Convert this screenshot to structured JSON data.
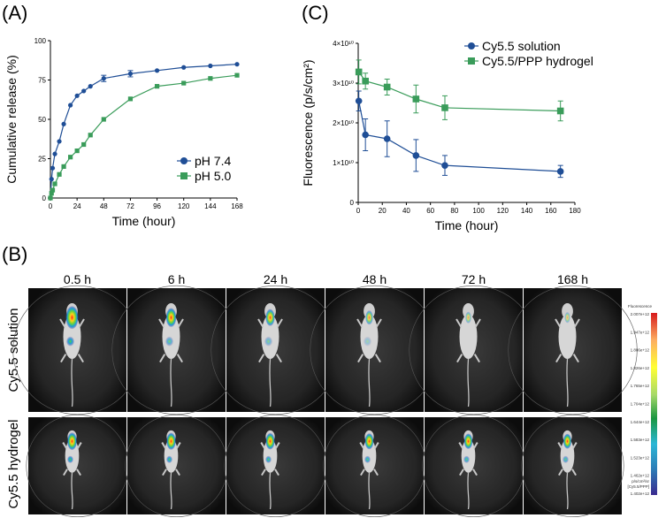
{
  "panels": {
    "a": "(A)",
    "b": "(B)",
    "c": "(C)"
  },
  "chart_data": [
    {
      "type": "line",
      "id": "A",
      "title": "",
      "xlabel": "Time (hour)",
      "ylabel": "Cumulative release (%)",
      "xlim": [
        0,
        168
      ],
      "ylim": [
        0,
        100
      ],
      "xticks": [
        0,
        24,
        48,
        72,
        96,
        120,
        144,
        168
      ],
      "yticks": [
        0,
        25,
        50,
        75,
        100
      ],
      "legend_position": "bottom-right",
      "series": [
        {
          "name": "pH 7.4",
          "marker": "circle",
          "color": "#1f4e96",
          "x": [
            0,
            1,
            2,
            4,
            8,
            12,
            18,
            24,
            30,
            36,
            48,
            72,
            96,
            120,
            144,
            168
          ],
          "y": [
            0,
            12,
            19,
            28,
            36,
            47,
            59,
            65,
            68,
            71,
            76,
            79,
            81,
            83,
            84,
            85
          ],
          "err": [
            0,
            0,
            0,
            0,
            0,
            0,
            0,
            0,
            0,
            0,
            2,
            2,
            0,
            0,
            0,
            0
          ]
        },
        {
          "name": "pH 5.0",
          "marker": "square",
          "color": "#3a9c5a",
          "x": [
            0,
            1,
            2,
            4,
            8,
            12,
            18,
            24,
            30,
            36,
            48,
            72,
            96,
            120,
            144,
            168
          ],
          "y": [
            0,
            3,
            5,
            9,
            15,
            20,
            26,
            30,
            34,
            40,
            50,
            63,
            71,
            73,
            76,
            78
          ],
          "err": [
            0,
            0,
            0,
            0,
            0,
            0,
            0,
            0,
            0,
            0,
            0,
            0,
            0,
            0,
            0,
            0
          ]
        }
      ]
    },
    {
      "type": "line",
      "id": "C",
      "title": "",
      "xlabel": "Time (hour)",
      "ylabel": "Fluorescence (p/s/cm²)",
      "xlim": [
        0,
        180
      ],
      "ylim": [
        0,
        4
      ],
      "xticks": [
        0,
        20,
        40,
        60,
        80,
        100,
        120,
        140,
        160,
        180
      ],
      "yticks": [
        0,
        1,
        2,
        3,
        4
      ],
      "ytick_labels": [
        "0",
        "1×10¹⁰",
        "2×10¹⁰",
        "3×10¹⁰",
        "4×10¹⁰"
      ],
      "legend_position": "top-right",
      "series": [
        {
          "name": "Cy5.5 solution",
          "marker": "circle",
          "color": "#1f4e96",
          "x": [
            0.5,
            6,
            24,
            48,
            72,
            168
          ],
          "y": [
            2.55,
            1.7,
            1.6,
            1.18,
            0.93,
            0.78
          ],
          "err": [
            0.25,
            0.4,
            0.45,
            0.4,
            0.25,
            0.15
          ]
        },
        {
          "name": "Cy5.5/PPP hydrogel",
          "marker": "square",
          "color": "#3a9c5a",
          "x": [
            0.5,
            6,
            24,
            48,
            72,
            168
          ],
          "y": [
            3.28,
            3.05,
            2.9,
            2.6,
            2.38,
            2.3
          ],
          "err": [
            0.3,
            0.2,
            0.2,
            0.35,
            0.3,
            0.25
          ]
        }
      ]
    }
  ],
  "imaging": {
    "time_points": [
      "0.5 h",
      "6 h",
      "24 h",
      "48 h",
      "72 h",
      "168 h"
    ],
    "rows": [
      {
        "label": "Cy5.5 solution",
        "intensity": [
          1.0,
          0.7,
          0.55,
          0.35,
          0.15,
          0.1
        ]
      },
      {
        "label": "Cy5.5 hydrogel",
        "intensity": [
          1.0,
          0.95,
          0.9,
          0.85,
          0.8,
          0.75
        ]
      }
    ],
    "colorbar": {
      "title": "Fluorescence",
      "labels": [
        "2.007e+12",
        "1.947e+12",
        "1.886e+12",
        "1.826e+12",
        "1.765e+12",
        "1.704e+12",
        "1.644e+12",
        "1.583e+12",
        "1.523e+12",
        "1.462e+12",
        "1.402e+12"
      ],
      "unit_lines": [
        "p/s/cm²/sr",
        "[Cy5.5/PPP]"
      ],
      "colors": [
        "#d7191c",
        "#fdae61",
        "#ffff33",
        "#a6d96a",
        "#1a9641",
        "#2bb7d6",
        "#2c7bb6",
        "#3a2a8f"
      ]
    }
  }
}
